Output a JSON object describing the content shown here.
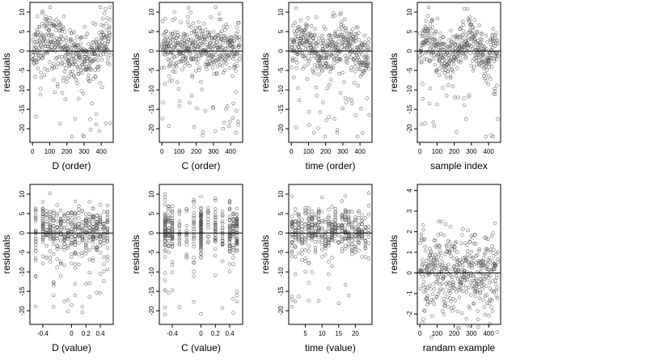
{
  "chart_data": [
    {
      "type": "scatter",
      "xlabel": "D (order)",
      "ylabel": "residuals",
      "xlim": [
        -15,
        470
      ],
      "ylim": [
        -23.5,
        12.5
      ],
      "x_ticks": [
        0,
        100,
        200,
        300,
        400
      ],
      "y_ticks": [
        -20,
        -15,
        -10,
        -5,
        0,
        5,
        10
      ],
      "hline": 0,
      "x_mode": "index",
      "y_mode": "normal",
      "y_pattern": "sorted",
      "seed": 11
    },
    {
      "type": "scatter",
      "xlabel": "C (order)",
      "ylabel": "residuals",
      "xlim": [
        -15,
        470
      ],
      "ylim": [
        -23.5,
        12.5
      ],
      "x_ticks": [
        0,
        100,
        200,
        300,
        400
      ],
      "y_ticks": [
        -20,
        -15,
        -10,
        -5,
        0,
        5,
        10
      ],
      "hline": 0,
      "x_mode": "index",
      "y_mode": "normal",
      "y_pattern": "random",
      "seed": 23
    },
    {
      "type": "scatter",
      "xlabel": "time (order)",
      "ylabel": "residuals",
      "xlim": [
        -15,
        470
      ],
      "ylim": [
        -23.5,
        12.5
      ],
      "x_ticks": [
        0,
        100,
        200,
        300,
        400
      ],
      "y_ticks": [
        -20,
        -15,
        -10,
        -5,
        0,
        5,
        10
      ],
      "hline": 0,
      "x_mode": "index",
      "y_mode": "normal",
      "y_pattern": "time",
      "seed": 37
    },
    {
      "type": "scatter",
      "xlabel": "sample index",
      "ylabel": "residuals",
      "xlim": [
        -15,
        470
      ],
      "ylim": [
        -23.5,
        12.5
      ],
      "x_ticks": [
        0,
        100,
        200,
        300,
        400
      ],
      "y_ticks": [
        -20,
        -15,
        -10,
        -5,
        0,
        5,
        10
      ],
      "hline": 0,
      "x_mode": "index",
      "y_mode": "normal",
      "y_pattern": "wave",
      "seed": 41
    },
    {
      "type": "scatter",
      "xlabel": "D (value)",
      "ylabel": "residuals",
      "xlim": [
        -0.58,
        0.58
      ],
      "ylim": [
        -23.5,
        12.5
      ],
      "x_ticks": [
        -0.4,
        0,
        0.2,
        0.4
      ],
      "x_tick_labels": [
        "-0.4",
        "0",
        "0.2",
        "0.4"
      ],
      "y_ticks": [
        -20,
        -15,
        -10,
        -5,
        0,
        5,
        10
      ],
      "hline": 0,
      "x_mode": "discrete",
      "x_values": [
        -0.5,
        -0.4,
        -0.35,
        -0.3,
        -0.25,
        -0.2,
        -0.15,
        -0.1,
        -0.05,
        0,
        0.05,
        0.1,
        0.15,
        0.2,
        0.25,
        0.3,
        0.35,
        0.4,
        0.45,
        0.5
      ],
      "y_mode": "normal",
      "seed": 53
    },
    {
      "type": "scatter",
      "xlabel": "C (value)",
      "ylabel": "residuals",
      "xlim": [
        -0.58,
        0.58
      ],
      "ylim": [
        -23.5,
        12.5
      ],
      "x_ticks": [
        -0.4,
        0,
        0.2,
        0.4
      ],
      "x_tick_labels": [
        "-0.4",
        "0",
        "0.2",
        "0.4"
      ],
      "y_ticks": [
        -20,
        -15,
        -10,
        -5,
        0,
        5,
        10
      ],
      "hline": 0,
      "x_mode": "discrete",
      "x_values": [
        -0.5,
        -0.45,
        -0.4,
        -0.3,
        -0.2,
        -0.1,
        0,
        0.1,
        0.2,
        0.3,
        0.4,
        0.45,
        0.5
      ],
      "x_weights": [
        4,
        3,
        3,
        2,
        2,
        2,
        8,
        2,
        2,
        2,
        3,
        3,
        4
      ],
      "y_mode": "normal",
      "seed": 67
    },
    {
      "type": "scatter",
      "xlabel": "time (value)",
      "ylabel": "residuals",
      "xlim": [
        0,
        25
      ],
      "ylim": [
        -23.5,
        12.5
      ],
      "x_ticks": [
        5,
        10,
        15,
        20
      ],
      "y_ticks": [
        -20,
        -15,
        -10,
        -5,
        0,
        5,
        10
      ],
      "hline": 0,
      "x_mode": "discrete",
      "x_values": [
        1,
        2,
        3,
        4,
        5,
        6,
        7,
        8,
        9,
        10,
        11,
        12,
        13,
        14,
        15,
        16,
        17,
        18,
        19,
        20,
        21,
        22,
        23,
        24
      ],
      "y_mode": "normal",
      "seed": 71
    },
    {
      "type": "scatter",
      "xlabel": "randam example",
      "ylabel": "residuals",
      "xlim": [
        -15,
        470
      ],
      "ylim": [
        -2.5,
        4.3
      ],
      "x_ticks": [
        0,
        100,
        200,
        300,
        400
      ],
      "y_ticks": [
        -2,
        -1,
        0,
        1,
        2,
        3,
        4
      ],
      "hline": 0,
      "x_mode": "index",
      "y_mode": "gauss",
      "y_pattern": "random",
      "seed": 89
    }
  ],
  "point_count": 455,
  "colors": {
    "points": "#555555",
    "axis": "#000000",
    "background": "#ffffff"
  }
}
